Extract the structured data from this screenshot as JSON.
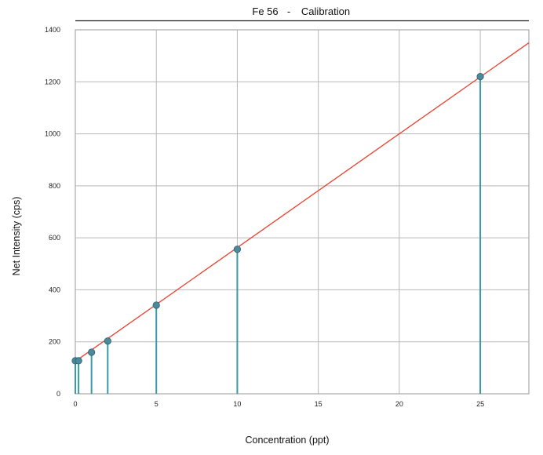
{
  "chart_data": {
    "type": "scatter",
    "title": {
      "analyte": "Fe 56",
      "separator": "-",
      "name": "Calibration"
    },
    "xlabel": "Concentration (ppt)",
    "ylabel": "Net Intensity (cps)",
    "xlim": [
      0,
      28
    ],
    "ylim": [
      0,
      1400
    ],
    "xticks": [
      0,
      5,
      10,
      15,
      20,
      25
    ],
    "yticks": [
      0,
      200,
      400,
      600,
      800,
      1000,
      1200,
      1400
    ],
    "grid": true,
    "points": [
      {
        "x": 0,
        "y": 127
      },
      {
        "x": 0.2,
        "y": 127
      },
      {
        "x": 1,
        "y": 160
      },
      {
        "x": 2,
        "y": 203
      },
      {
        "x": 5,
        "y": 341
      },
      {
        "x": 10,
        "y": 556
      },
      {
        "x": 25,
        "y": 1220
      }
    ],
    "fit_line": {
      "x0": 0,
      "y0": 125,
      "x1": 28,
      "y1": 1350
    },
    "colors": {
      "point_fill": "#4a8a9a",
      "point_stroke": "#2e5e6c",
      "stem": "#3a9aa6",
      "fit_line": "#e8412e",
      "grid": "#b8b8b8",
      "frame": "#999999"
    }
  }
}
